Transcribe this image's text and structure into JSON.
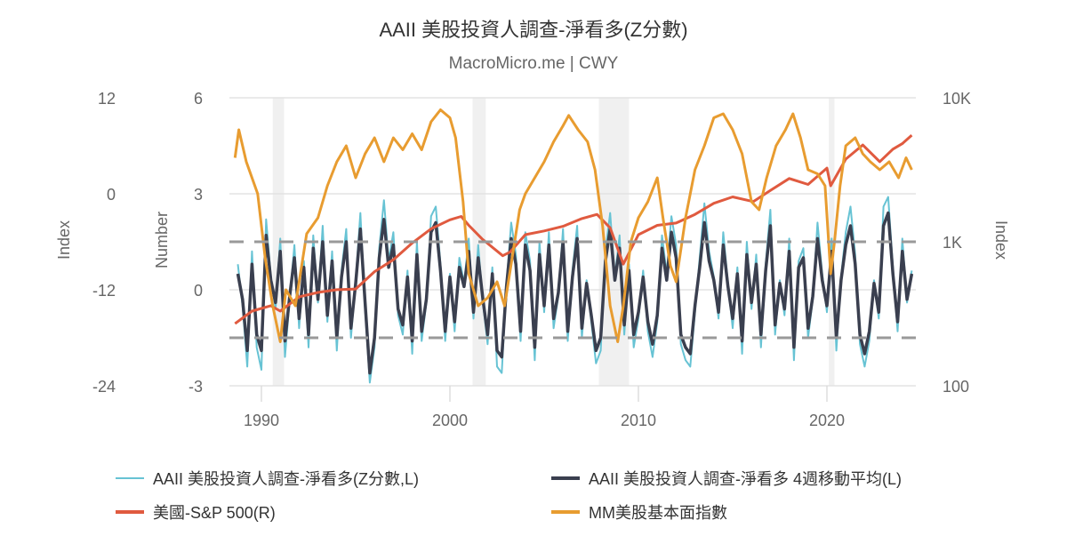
{
  "chart_data": {
    "type": "line",
    "title": "AAII 美股投資人調查-淨看多(Z分數)",
    "subtitle": "MacroMicro.me | CWY",
    "axes": {
      "left_outer": {
        "label": "Index",
        "ticks": [
          "12",
          "0",
          "-12",
          "-24"
        ],
        "range": [
          -24,
          12
        ]
      },
      "left_inner": {
        "label": "Number",
        "ticks": [
          "6",
          "3",
          "0",
          "-3"
        ],
        "range": [
          -3,
          6
        ]
      },
      "right": {
        "label": "Index",
        "ticks": [
          "10K",
          "1K",
          "100"
        ],
        "range": [
          100,
          10000
        ],
        "scale": "log"
      },
      "x": {
        "ticks": [
          "1990",
          "2000",
          "2010",
          "2020"
        ],
        "range": [
          1988.5,
          2024.6
        ]
      }
    },
    "reference_lines": [
      1.5,
      -1.5
    ],
    "recessions": [
      [
        1990.6,
        1991.2
      ],
      [
        2001.2,
        2001.9
      ],
      [
        2007.9,
        2009.5
      ],
      [
        2020.1,
        2020.4
      ]
    ],
    "grid": true,
    "legend_position": "bottom",
    "series": [
      {
        "name": "AAII 美股投資人調查-淨看多(Z分數,L)",
        "axis": "left_inner",
        "color": "#67c3d4",
        "x_start": 1988.75,
        "x_step": 0.25,
        "values": [
          0.8,
          -0.5,
          -2.4,
          1.2,
          -1.8,
          -2.5,
          2.2,
          0.4,
          -0.6,
          1.6,
          -2.1,
          -0.3,
          1.4,
          -1.2,
          0.9,
          -1.8,
          1.7,
          -0.4,
          2.0,
          -1.0,
          1.2,
          -1.9,
          0.6,
          1.9,
          -1.5,
          0.3,
          2.4,
          -0.6,
          -2.9,
          -1.8,
          1.3,
          2.8,
          0.9,
          1.8,
          -0.8,
          -1.4,
          0.6,
          -2.0,
          1.5,
          -1.6,
          -0.4,
          2.3,
          2.6,
          0.8,
          -1.6,
          0.5,
          -1.3,
          1.0,
          0.2,
          1.6,
          -0.9,
          1.4,
          -0.4,
          -1.7,
          0.7,
          -2.4,
          -2.6,
          0.2,
          2.1,
          1.1,
          -1.6,
          1.8,
          0.9,
          -2.2,
          1.5,
          -0.7,
          1.8,
          -1.2,
          -0.2,
          1.9,
          -1.6,
          0.6,
          2.0,
          -1.5,
          0.3,
          -1.0,
          -2.3,
          -1.9,
          1.2,
          2.4,
          0.4,
          1.7,
          -1.4,
          0.8,
          -1.8,
          -0.9,
          0.6,
          -1.3,
          -2.1,
          -1.0,
          1.7,
          0.5,
          2.3,
          1.4,
          -1.7,
          -2.2,
          -2.4,
          -0.7,
          1.0,
          2.7,
          1.2,
          0.4,
          -0.9,
          1.8,
          0.2,
          -1.2,
          0.7,
          -2.0,
          1.5,
          -0.6,
          1.1,
          -1.8,
          0.8,
          2.5,
          -1.4,
          0.3,
          -0.8,
          1.6,
          -2.2,
          0.9,
          1.3,
          -1.5,
          -0.3,
          2.1,
          0.5,
          -0.7,
          1.6,
          -1.9,
          0.4,
          1.8,
          2.6,
          1.1,
          -1.7,
          -2.4,
          -1.6,
          0.3,
          -0.9,
          2.6,
          2.9,
          0.7,
          -1.3,
          1.6,
          -0.4,
          0.6
        ]
      },
      {
        "name": "AAII 美股投資人調查-淨看多 4週移動平均(L)",
        "axis": "left_inner",
        "color": "#3a3f4f",
        "x_start": 1988.75,
        "x_step": 0.25,
        "values": [
          0.5,
          -0.3,
          -1.9,
          0.8,
          -1.4,
          -1.9,
          1.7,
          0.3,
          -0.4,
          1.2,
          -1.6,
          -0.2,
          1.0,
          -0.9,
          0.7,
          -1.4,
          1.3,
          -0.3,
          1.5,
          -0.8,
          0.9,
          -1.5,
          0.4,
          1.5,
          -1.2,
          0.2,
          1.9,
          -0.4,
          -2.6,
          -1.5,
          1.0,
          2.2,
          0.7,
          1.4,
          -0.6,
          -1.1,
          0.4,
          -1.6,
          1.1,
          -1.3,
          -0.3,
          1.8,
          2.1,
          0.6,
          -1.3,
          0.4,
          -1.0,
          0.7,
          0.1,
          1.2,
          -0.7,
          1.0,
          -0.3,
          -1.4,
          0.5,
          -1.9,
          -2.1,
          0.1,
          1.6,
          0.8,
          -1.3,
          1.4,
          0.6,
          -1.8,
          1.1,
          -0.5,
          1.4,
          -0.9,
          -0.1,
          1.5,
          -1.3,
          0.4,
          1.6,
          -1.2,
          0.2,
          -0.8,
          -1.9,
          -1.5,
          0.9,
          1.9,
          0.3,
          1.3,
          -1.1,
          0.6,
          -1.4,
          -0.7,
          0.4,
          -1.0,
          -1.7,
          -0.8,
          1.3,
          0.3,
          1.8,
          1.0,
          -1.4,
          -1.8,
          -2.0,
          -0.5,
          0.7,
          2.1,
          0.9,
          0.3,
          -0.7,
          1.4,
          0.1,
          -0.9,
          0.5,
          -1.6,
          1.1,
          -0.4,
          0.8,
          -1.4,
          0.6,
          2.0,
          -1.1,
          0.2,
          -0.6,
          1.2,
          -1.8,
          0.7,
          1.0,
          -1.2,
          -0.2,
          1.6,
          0.3,
          -0.5,
          1.2,
          -1.5,
          0.3,
          1.4,
          2.0,
          0.8,
          -1.4,
          -2.0,
          -1.3,
          0.2,
          -0.7,
          2.0,
          2.4,
          0.5,
          -1.0,
          1.2,
          -0.3,
          0.5
        ]
      },
      {
        "name": "美國-S&P 500(R)",
        "axis": "right",
        "color": "#e05a3f",
        "points": [
          [
            1988.6,
            270
          ],
          [
            1989.5,
            330
          ],
          [
            1990.5,
            360
          ],
          [
            1991.0,
            330
          ],
          [
            1992.0,
            415
          ],
          [
            1993.0,
            445
          ],
          [
            1994.0,
            465
          ],
          [
            1995.0,
            470
          ],
          [
            1996.0,
            620
          ],
          [
            1997.0,
            750
          ],
          [
            1998.0,
            980
          ],
          [
            1999.0,
            1230
          ],
          [
            2000.0,
            1420
          ],
          [
            2000.6,
            1500
          ],
          [
            2001.0,
            1300
          ],
          [
            2001.7,
            1050
          ],
          [
            2002.8,
            800
          ],
          [
            2003.2,
            850
          ],
          [
            2004.0,
            1120
          ],
          [
            2005.0,
            1190
          ],
          [
            2006.0,
            1280
          ],
          [
            2007.0,
            1450
          ],
          [
            2007.8,
            1550
          ],
          [
            2008.5,
            1250
          ],
          [
            2009.2,
            700
          ],
          [
            2010.0,
            1120
          ],
          [
            2011.0,
            1300
          ],
          [
            2012.0,
            1350
          ],
          [
            2013.0,
            1550
          ],
          [
            2014.0,
            1850
          ],
          [
            2015.0,
            2050
          ],
          [
            2016.1,
            1900
          ],
          [
            2017.0,
            2270
          ],
          [
            2018.0,
            2750
          ],
          [
            2019.0,
            2500
          ],
          [
            2020.0,
            3250
          ],
          [
            2020.2,
            2450
          ],
          [
            2021.0,
            3750
          ],
          [
            2021.9,
            4700
          ],
          [
            2022.8,
            3600
          ],
          [
            2023.5,
            4400
          ],
          [
            2024.0,
            4800
          ],
          [
            2024.5,
            5500
          ]
        ]
      },
      {
        "name": "MM美股基本面指數",
        "axis": "left_outer",
        "color": "#e89c30",
        "points": [
          [
            1988.6,
            4.5
          ],
          [
            1988.8,
            8
          ],
          [
            1989.2,
            4
          ],
          [
            1989.8,
            0
          ],
          [
            1990.2,
            -8
          ],
          [
            1990.6,
            -14
          ],
          [
            1991.0,
            -18.5
          ],
          [
            1991.3,
            -12
          ],
          [
            1991.8,
            -14
          ],
          [
            1992.4,
            -5
          ],
          [
            1993.0,
            -3
          ],
          [
            1993.5,
            1
          ],
          [
            1994.0,
            4
          ],
          [
            1994.5,
            6
          ],
          [
            1995.0,
            2
          ],
          [
            1995.5,
            5
          ],
          [
            1996.0,
            7
          ],
          [
            1996.5,
            4
          ],
          [
            1997.0,
            7
          ],
          [
            1997.5,
            5.5
          ],
          [
            1998.0,
            7.5
          ],
          [
            1998.5,
            5.5
          ],
          [
            1999.0,
            9
          ],
          [
            1999.5,
            10.5
          ],
          [
            2000.0,
            9.5
          ],
          [
            2000.3,
            7
          ],
          [
            2000.7,
            -1
          ],
          [
            2001.0,
            -10
          ],
          [
            2001.5,
            -14
          ],
          [
            2002.0,
            -13
          ],
          [
            2002.5,
            -11
          ],
          [
            2002.9,
            -14
          ],
          [
            2003.3,
            -8
          ],
          [
            2003.7,
            -2
          ],
          [
            2004.0,
            0
          ],
          [
            2004.5,
            2
          ],
          [
            2005.0,
            4
          ],
          [
            2005.5,
            6.5
          ],
          [
            2006.0,
            8.5
          ],
          [
            2006.3,
            9.8
          ],
          [
            2006.8,
            8
          ],
          [
            2007.3,
            6.5
          ],
          [
            2007.7,
            3
          ],
          [
            2008.1,
            -4
          ],
          [
            2008.5,
            -14
          ],
          [
            2008.9,
            -18.5
          ],
          [
            2009.2,
            -14
          ],
          [
            2009.6,
            -6
          ],
          [
            2010.0,
            -3
          ],
          [
            2010.5,
            -1
          ],
          [
            2011.0,
            2
          ],
          [
            2011.3,
            -3
          ],
          [
            2011.7,
            -9
          ],
          [
            2012.0,
            -11
          ],
          [
            2012.5,
            -3
          ],
          [
            2013.0,
            3
          ],
          [
            2013.5,
            6
          ],
          [
            2014.0,
            9.5
          ],
          [
            2014.5,
            10
          ],
          [
            2015.0,
            8
          ],
          [
            2015.5,
            5
          ],
          [
            2016.0,
            -1
          ],
          [
            2016.4,
            -2
          ],
          [
            2016.8,
            2
          ],
          [
            2017.3,
            6
          ],
          [
            2017.8,
            8
          ],
          [
            2018.2,
            10
          ],
          [
            2018.6,
            7
          ],
          [
            2019.0,
            3
          ],
          [
            2019.5,
            2.5
          ],
          [
            2019.9,
            1
          ],
          [
            2020.2,
            -10
          ],
          [
            2020.4,
            -6
          ],
          [
            2020.7,
            1
          ],
          [
            2021.0,
            6
          ],
          [
            2021.5,
            7
          ],
          [
            2021.9,
            5
          ],
          [
            2022.3,
            4
          ],
          [
            2022.8,
            3
          ],
          [
            2023.3,
            4
          ],
          [
            2023.8,
            2
          ],
          [
            2024.2,
            4.5
          ],
          [
            2024.5,
            3
          ]
        ]
      }
    ]
  }
}
